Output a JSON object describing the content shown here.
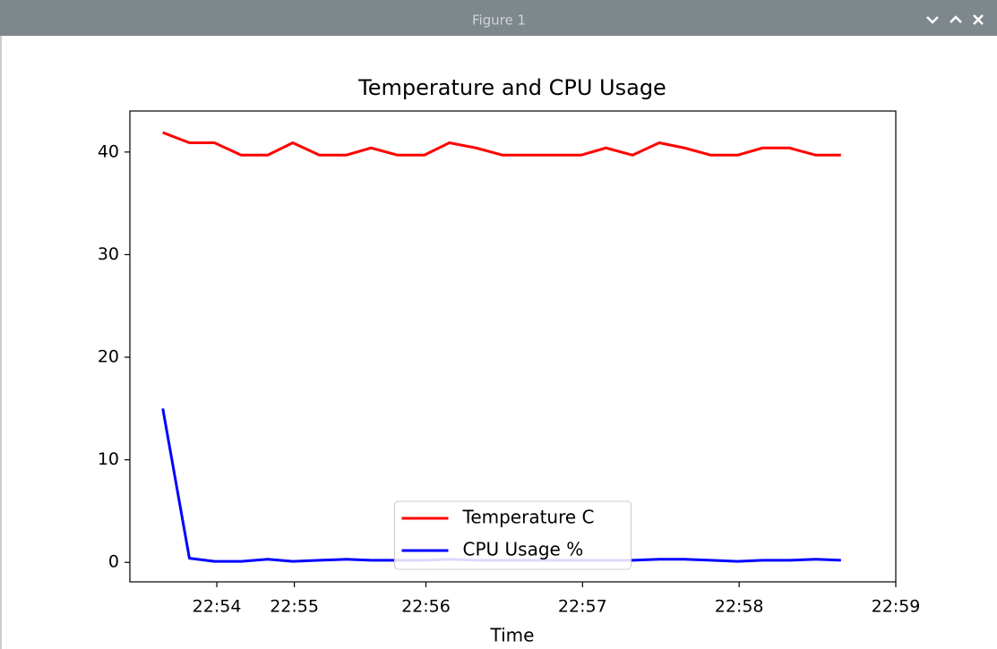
{
  "window": {
    "title": "Figure 1"
  },
  "chart_data": {
    "type": "line",
    "title": "Temperature and CPU Usage",
    "x_label": "Time",
    "x": [
      1374.32,
      1374.49,
      1374.65,
      1374.82,
      1374.99,
      1375.15,
      1375.32,
      1375.49,
      1375.65,
      1375.82,
      1375.99,
      1376.15,
      1376.32,
      1376.49,
      1376.65,
      1376.82,
      1376.99,
      1377.15,
      1377.32,
      1377.49,
      1377.65,
      1377.82,
      1377.99,
      1378.15,
      1378.32,
      1378.49,
      1378.65
    ],
    "series": [
      {
        "name": "Temperature C",
        "color": "#ff0000",
        "values": [
          41.9,
          40.9,
          40.9,
          39.7,
          39.7,
          40.9,
          39.7,
          39.7,
          40.4,
          39.7,
          39.7,
          40.9,
          40.4,
          39.7,
          39.7,
          39.7,
          39.7,
          40.4,
          39.7,
          40.9,
          40.4,
          39.7,
          39.7,
          40.4,
          40.4,
          39.7,
          39.7
        ]
      },
      {
        "name": "CPU Usage %",
        "color": "#0000ff",
        "values": [
          15.0,
          0.4,
          0.1,
          0.1,
          0.3,
          0.1,
          0.2,
          0.3,
          0.2,
          0.2,
          0.2,
          0.3,
          0.2,
          0.2,
          0.2,
          0.2,
          0.2,
          0.2,
          0.2,
          0.3,
          0.3,
          0.2,
          0.1,
          0.2,
          0.2,
          0.3,
          0.2
        ]
      }
    ],
    "xlim": [
      1374.11,
      1379.0
    ],
    "xticks": [
      {
        "value": 1374.665,
        "label": "22:54"
      },
      {
        "value": 1375.16,
        "label": "22:55"
      },
      {
        "value": 1376.0,
        "label": "22:56"
      },
      {
        "value": 1377.0,
        "label": "22:57"
      },
      {
        "value": 1378.0,
        "label": "22:58"
      },
      {
        "value": 1379.0,
        "label": "22:59"
      }
    ],
    "ylim": [
      -1.9,
      44.0
    ],
    "yticks": [
      0,
      10,
      20,
      30,
      40
    ],
    "legend": "lower center",
    "grid": false
  }
}
